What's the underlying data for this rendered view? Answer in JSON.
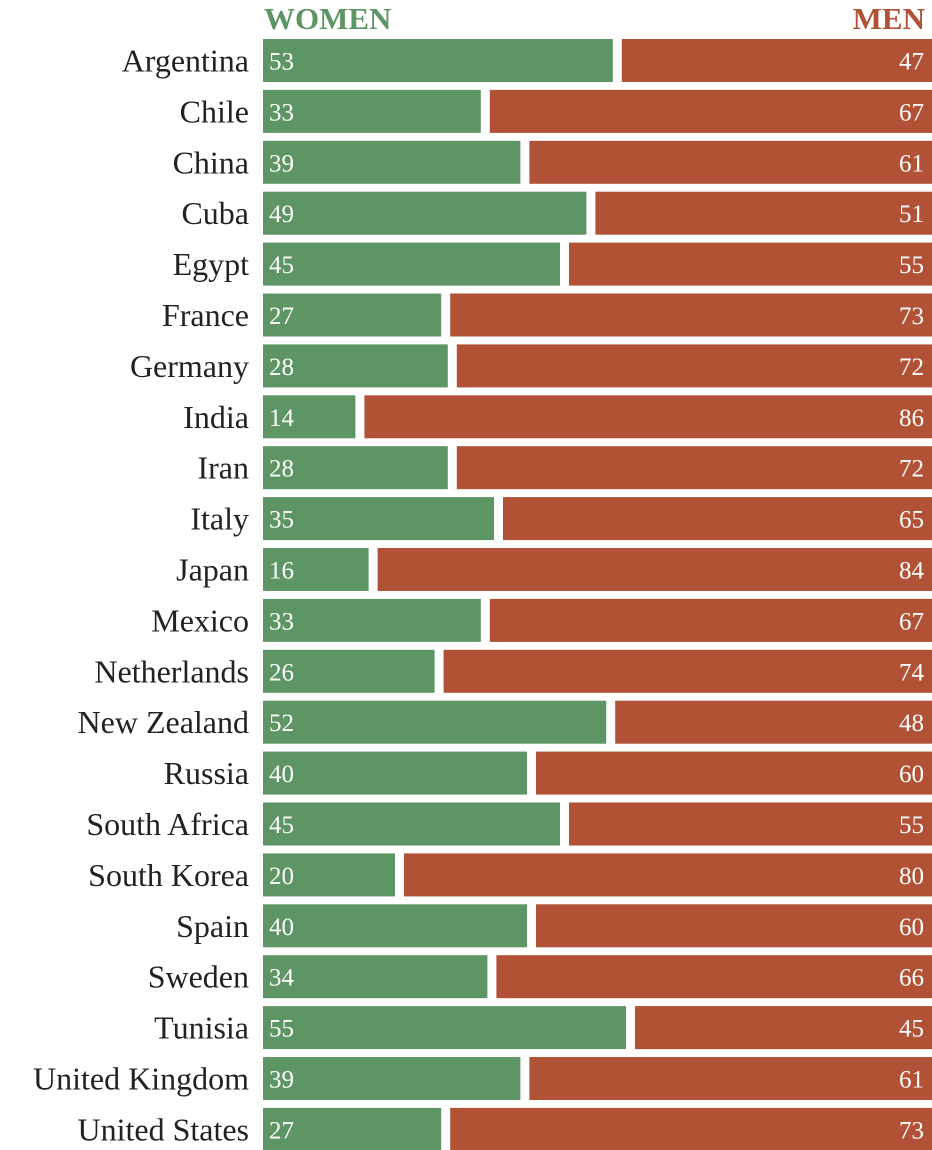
{
  "colors": {
    "women": "#5e9565",
    "men": "#b15236",
    "label_text": "#222222",
    "value_text": "#ffffff"
  },
  "chart_data": {
    "type": "bar",
    "orientation": "horizontal",
    "stacked": true,
    "normalized_total": 100,
    "title": "",
    "xlabel": "",
    "ylabel": "",
    "legend": {
      "women": "WOMEN",
      "men": "MEN"
    },
    "categories": [
      "Argentina",
      "Chile",
      "China",
      "Cuba",
      "Egypt",
      "France",
      "Germany",
      "India",
      "Iran",
      "Italy",
      "Japan",
      "Mexico",
      "Netherlands",
      "New Zealand",
      "Russia",
      "South Africa",
      "South Korea",
      "Spain",
      "Sweden",
      "Tunisia",
      "United Kingdom",
      "United States"
    ],
    "series": [
      {
        "name": "WOMEN",
        "values": [
          53,
          33,
          39,
          49,
          45,
          27,
          28,
          14,
          28,
          35,
          16,
          33,
          26,
          52,
          40,
          45,
          20,
          40,
          34,
          55,
          39,
          27
        ]
      },
      {
        "name": "MEN",
        "values": [
          47,
          67,
          61,
          51,
          55,
          73,
          72,
          86,
          72,
          65,
          84,
          67,
          74,
          48,
          60,
          55,
          80,
          60,
          66,
          45,
          61,
          73
        ]
      }
    ]
  }
}
